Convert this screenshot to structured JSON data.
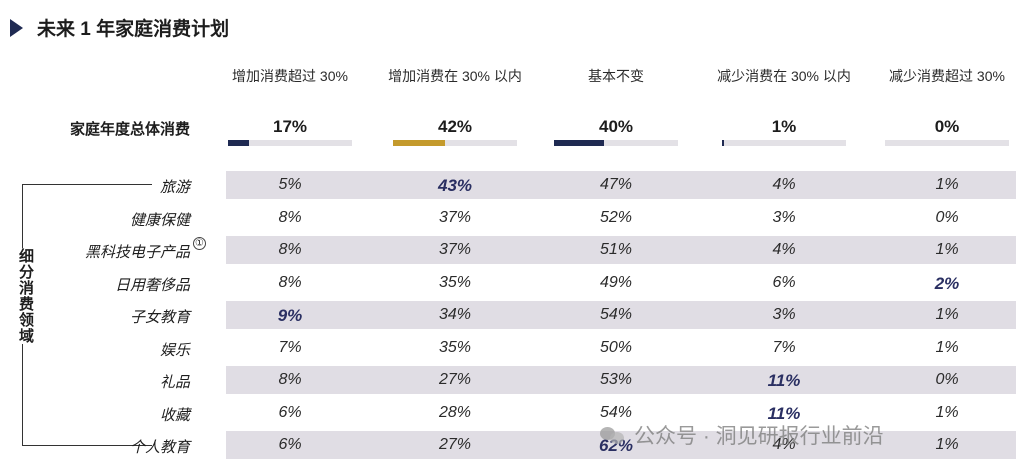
{
  "title": "未来 1 年家庭消费计划",
  "side_label": "细分消费领域",
  "footnote_marker": "①",
  "watermark": "公众号 · 洞见研报行业前沿",
  "colors": {
    "navy": "#1f2a52",
    "gold": "#c49a2c",
    "track": "#e3e1e6",
    "shade": "#e0dde4",
    "highlight": "#2a2f62"
  },
  "chart_data": {
    "type": "table",
    "title": "未来 1 年家庭消费计划",
    "columns": [
      "增加消费超过 30%",
      "增加消费在 30% 以内",
      "基本不变",
      "减少消费在 30% 以内",
      "减少消费超过 30%"
    ],
    "total": {
      "label": "家庭年度总体消费",
      "values": [
        "17%",
        "42%",
        "40%",
        "1%",
        "0%"
      ],
      "numeric": [
        17,
        42,
        40,
        1,
        0
      ],
      "bar_colors": [
        "navy",
        "gold",
        "navy",
        "navy",
        "navy"
      ]
    },
    "rows": [
      {
        "label": "旅游",
        "values": [
          "5%",
          "43%",
          "47%",
          "4%",
          "1%"
        ],
        "highlight": [
          1
        ]
      },
      {
        "label": "健康保健",
        "values": [
          "8%",
          "37%",
          "52%",
          "3%",
          "0%"
        ],
        "highlight": []
      },
      {
        "label": "黑科技电子产品",
        "values": [
          "8%",
          "37%",
          "51%",
          "4%",
          "1%"
        ],
        "highlight": []
      },
      {
        "label": "日用奢侈品",
        "values": [
          "8%",
          "35%",
          "49%",
          "6%",
          "2%"
        ],
        "highlight": [
          4
        ]
      },
      {
        "label": "子女教育",
        "values": [
          "9%",
          "34%",
          "54%",
          "3%",
          "1%"
        ],
        "highlight": [
          0
        ]
      },
      {
        "label": "娱乐",
        "values": [
          "7%",
          "35%",
          "50%",
          "7%",
          "1%"
        ],
        "highlight": []
      },
      {
        "label": "礼品",
        "values": [
          "8%",
          "27%",
          "53%",
          "11%",
          "0%"
        ],
        "highlight": [
          3
        ]
      },
      {
        "label": "收藏",
        "values": [
          "6%",
          "28%",
          "54%",
          "11%",
          "1%"
        ],
        "highlight": [
          3
        ]
      },
      {
        "label": "个人教育",
        "values": [
          "6%",
          "27%",
          "62%",
          "4%",
          "1%"
        ],
        "highlight": [
          2
        ]
      }
    ]
  }
}
